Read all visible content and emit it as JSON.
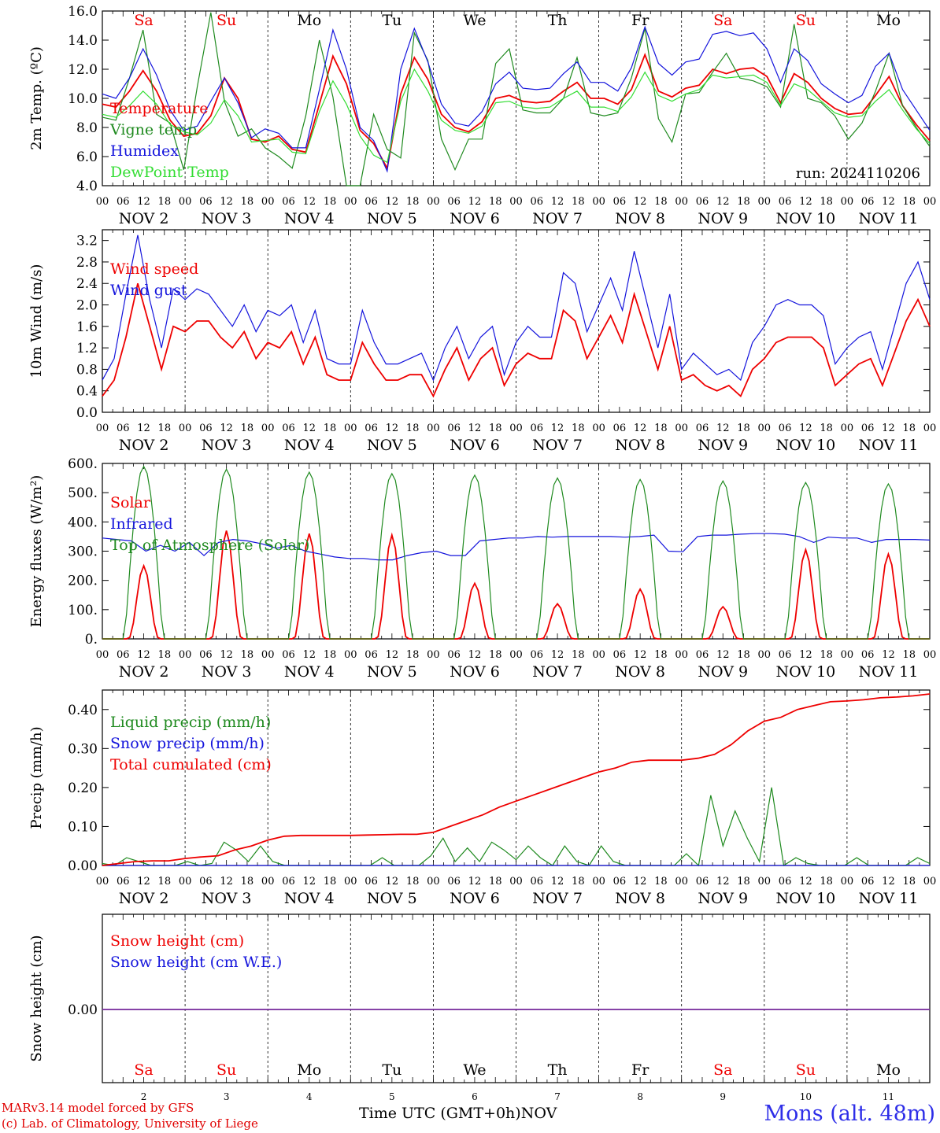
{
  "colors": {
    "red": "#ee0000",
    "green": "#1f8a1f",
    "blue": "#1414dc",
    "lightgreen": "#33dd33",
    "purple": "#7a2f9e",
    "weekend": "#ee0000",
    "weekday": "#000000",
    "station": "#2e2ee8"
  },
  "day_letters": [
    "Sa",
    "Su",
    "Mo",
    "Tu",
    "We",
    "Th",
    "Fr",
    "Sa",
    "Su",
    "Mo"
  ],
  "weekend_flags": [
    true,
    true,
    false,
    false,
    false,
    false,
    false,
    true,
    true,
    false
  ],
  "hour_labels": [
    "00",
    "06",
    "12",
    "18"
  ],
  "date_labels": [
    "NOV 2",
    "NOV 3",
    "NOV 4",
    "NOV 5",
    "NOV 6",
    "NOV 7",
    "NOV 8",
    "NOV 9",
    "NOV 10",
    "NOV 11"
  ],
  "bottom_day_numbers": [
    "2",
    "3",
    "4",
    "5",
    "6",
    "7",
    "8",
    "9",
    "10",
    "11"
  ],
  "footer": {
    "model_line": "MARv3.14 model forced by GFS",
    "lab_line": "(c) Lab. of Climatology, University of Liege",
    "time_axis": "Time UTC (GMT+0h)",
    "month": "NOV",
    "station": "Mons (alt. 48m)"
  },
  "chart_data": [
    {
      "type": "line",
      "ylabel": "2m Temp. (ºC)",
      "ylim": [
        4.0,
        16.0
      ],
      "yticks": [
        "4.0",
        "6.0",
        "8.0",
        "10.0",
        "12.0",
        "14.0",
        "16.0"
      ],
      "annotation": "run: 2024110206",
      "grid": "daily dashed verticals",
      "series": [
        {
          "name": "Temperature",
          "color": "red",
          "values": [
            9.6,
            9.4,
            10.5,
            11.9,
            10.5,
            8.5,
            7.4,
            7.6,
            8.8,
            11.4,
            10.0,
            7.2,
            7.0,
            7.4,
            6.5,
            6.3,
            9.6,
            12.9,
            11.0,
            7.8,
            6.9,
            5.2,
            10.3,
            12.8,
            11.3,
            8.9,
            8.0,
            7.7,
            8.4,
            10.0,
            10.2,
            9.8,
            9.7,
            9.8,
            10.5,
            11.1,
            10.0,
            10.0,
            9.6,
            10.6,
            13.0,
            10.5,
            10.1,
            10.7,
            10.9,
            12.0,
            11.7,
            12.0,
            12.1,
            11.5,
            9.7,
            11.7,
            11.1,
            10.0,
            9.3,
            8.9,
            9.0,
            10.2,
            11.5,
            9.5,
            8.2,
            7.1
          ]
        },
        {
          "name": "Vigne temp",
          "color": "green",
          "values": [
            8.7,
            8.5,
            11.4,
            14.7,
            8.9,
            8.3,
            5.1,
            10.8,
            15.9,
            9.8,
            7.4,
            7.9,
            6.6,
            6.0,
            5.2,
            8.8,
            14.0,
            10.1,
            4.0,
            4.0,
            8.9,
            6.5,
            5.9,
            14.5,
            12.6,
            7.2,
            5.1,
            7.2,
            7.2,
            12.4,
            13.4,
            9.2,
            9.0,
            9.0,
            10.0,
            12.8,
            9.0,
            8.8,
            9.0,
            11.4,
            14.8,
            8.6,
            7.0,
            10.3,
            10.4,
            11.8,
            13.1,
            11.4,
            11.2,
            10.8,
            9.4,
            15.1,
            10.0,
            9.7,
            8.8,
            7.2,
            8.3,
            10.5,
            13.1,
            9.5,
            8.0,
            6.7
          ]
        },
        {
          "name": "Humidex",
          "color": "blue",
          "values": [
            10.3,
            10.0,
            11.4,
            13.4,
            11.6,
            9.2,
            7.8,
            8.1,
            9.8,
            11.4,
            9.7,
            7.3,
            7.9,
            7.6,
            6.6,
            6.6,
            10.6,
            14.7,
            12.0,
            8.0,
            7.1,
            5.0,
            12.0,
            14.8,
            12.5,
            9.6,
            8.3,
            8.1,
            9.1,
            11.0,
            11.8,
            10.7,
            10.6,
            10.7,
            11.7,
            12.5,
            11.1,
            11.1,
            10.5,
            12.1,
            14.9,
            12.4,
            11.6,
            12.5,
            12.7,
            14.4,
            14.6,
            14.3,
            14.5,
            13.4,
            11.1,
            13.4,
            12.6,
            11.0,
            10.3,
            9.7,
            10.2,
            12.2,
            13.1,
            10.6,
            9.2,
            7.8
          ]
        },
        {
          "name": "DewPoint Temp",
          "color": "lightgreen",
          "values": [
            8.9,
            8.7,
            9.5,
            10.5,
            9.6,
            8.2,
            7.7,
            7.5,
            8.3,
            9.9,
            8.8,
            7.0,
            7.1,
            7.2,
            6.3,
            6.2,
            9.1,
            11.2,
            9.6,
            7.4,
            6.1,
            5.6,
            9.8,
            12.0,
            10.5,
            8.5,
            7.8,
            7.6,
            8.1,
            9.7,
            9.8,
            9.4,
            9.3,
            9.4,
            10.0,
            10.5,
            9.4,
            9.4,
            9.1,
            10.1,
            11.8,
            10.2,
            9.8,
            10.3,
            10.6,
            11.6,
            11.4,
            11.5,
            11.6,
            11.1,
            9.5,
            11.0,
            10.6,
            9.8,
            9.0,
            8.7,
            8.8,
            9.8,
            10.6,
            9.2,
            7.9,
            6.9
          ]
        }
      ]
    },
    {
      "type": "line",
      "ylabel": "10m Wind (m/s)",
      "ylim": [
        0.0,
        3.4
      ],
      "yticks": [
        "0.0",
        "0.4",
        "0.8",
        "1.2",
        "1.6",
        "2.0",
        "2.4",
        "2.8",
        "3.2"
      ],
      "series": [
        {
          "name": "Wind speed",
          "color": "red",
          "values": [
            0.3,
            0.6,
            1.4,
            2.4,
            1.6,
            0.8,
            1.6,
            1.5,
            1.7,
            1.7,
            1.4,
            1.2,
            1.5,
            1.0,
            1.3,
            1.2,
            1.5,
            0.9,
            1.4,
            0.7,
            0.6,
            0.6,
            1.3,
            0.9,
            0.6,
            0.6,
            0.7,
            0.7,
            0.3,
            0.8,
            1.2,
            0.6,
            1.0,
            1.2,
            0.5,
            0.9,
            1.1,
            1.0,
            1.0,
            1.9,
            1.7,
            1.0,
            1.4,
            1.8,
            1.3,
            2.2,
            1.5,
            0.8,
            1.6,
            0.6,
            0.7,
            0.5,
            0.4,
            0.5,
            0.3,
            0.8,
            1.0,
            1.3,
            1.4,
            1.4,
            1.4,
            1.2,
            0.5,
            0.7,
            0.9,
            1.0,
            0.5,
            1.1,
            1.7,
            2.1,
            1.6
          ]
        },
        {
          "name": "Wind gust",
          "color": "blue",
          "values": [
            0.6,
            1.0,
            2.2,
            3.3,
            2.1,
            1.2,
            2.3,
            2.1,
            2.3,
            2.2,
            1.9,
            1.6,
            2.0,
            1.5,
            1.9,
            1.8,
            2.0,
            1.3,
            1.9,
            1.0,
            0.9,
            0.9,
            1.9,
            1.3,
            0.9,
            0.9,
            1.0,
            1.1,
            0.6,
            1.2,
            1.6,
            1.0,
            1.4,
            1.6,
            0.7,
            1.3,
            1.6,
            1.4,
            1.4,
            2.6,
            2.4,
            1.5,
            2.0,
            2.5,
            1.9,
            3.0,
            2.1,
            1.2,
            2.2,
            0.8,
            1.1,
            0.9,
            0.7,
            0.8,
            0.6,
            1.3,
            1.6,
            2.0,
            2.1,
            2.0,
            2.0,
            1.8,
            0.9,
            1.2,
            1.4,
            1.5,
            0.8,
            1.6,
            2.4,
            2.8,
            2.1
          ]
        }
      ]
    },
    {
      "type": "line",
      "ylabel": "Energy fluxes (W/m²)",
      "ylim": [
        0,
        600
      ],
      "yticks": [
        "0.",
        "100.",
        "200.",
        "300.",
        "400.",
        "500.",
        "600."
      ],
      "series": [
        {
          "name": "Solar",
          "color": "red",
          "peaks": [
            250,
            370,
            360,
            355,
            190,
            120,
            170,
            110,
            305,
            290
          ]
        },
        {
          "name": "Infrared",
          "color": "blue",
          "values": [
            345,
            340,
            335,
            300,
            320,
            300,
            330,
            285,
            330,
            340,
            335,
            325,
            310,
            320,
            300,
            290,
            280,
            275,
            275,
            270,
            270,
            285,
            295,
            300,
            285,
            285,
            335,
            340,
            345,
            345,
            350,
            348,
            350,
            350,
            350,
            350,
            348,
            350,
            355,
            300,
            298,
            350,
            355,
            355,
            358,
            360,
            360,
            358,
            350,
            330,
            348,
            345,
            345,
            330,
            340,
            340,
            340,
            338
          ]
        },
        {
          "name": "Top of Atmosphere (Solar)",
          "color": "green",
          "peaks": [
            590,
            580,
            570,
            565,
            560,
            550,
            545,
            540,
            535,
            530
          ]
        }
      ]
    },
    {
      "type": "line",
      "ylabel": "Precip (mm/h)",
      "ylim": [
        0.0,
        0.45
      ],
      "yticks": [
        "0.00",
        "0.10",
        "0.20",
        "0.30",
        "0.40"
      ],
      "series": [
        {
          "name": "Liquid precip (mm/h)",
          "color": "green",
          "values": [
            0.005,
            0.0,
            0.02,
            0.01,
            0.0,
            0.0,
            0.0,
            0.01,
            0.0,
            0.005,
            0.06,
            0.04,
            0.01,
            0.05,
            0.01,
            0.0,
            0.0,
            0.0,
            0.0,
            0.0,
            0.0,
            0.0,
            0.0,
            0.02,
            0.0,
            0.0,
            0.0,
            0.025,
            0.07,
            0.01,
            0.045,
            0.01,
            0.06,
            0.04,
            0.015,
            0.05,
            0.02,
            0.0,
            0.05,
            0.01,
            0.0,
            0.05,
            0.01,
            0.0,
            0.0,
            0.0,
            0.0,
            0.0,
            0.03,
            0.0,
            0.18,
            0.05,
            0.14,
            0.07,
            0.01,
            0.2,
            0.0,
            0.02,
            0.005,
            0.0,
            0.0,
            0.0,
            0.02,
            0.0,
            0.0,
            0.0,
            0.0,
            0.02,
            0.005
          ]
        },
        {
          "name": "Snow precip (mm/h)",
          "color": "blue",
          "values": [
            0.0
          ]
        },
        {
          "name": "Total cumulated (cm)",
          "color": "red",
          "values": [
            0.0,
            0.005,
            0.01,
            0.012,
            0.012,
            0.018,
            0.022,
            0.025,
            0.04,
            0.05,
            0.065,
            0.075,
            0.077,
            0.077,
            0.077,
            0.077,
            0.078,
            0.079,
            0.08,
            0.08,
            0.085,
            0.1,
            0.115,
            0.13,
            0.15,
            0.165,
            0.18,
            0.195,
            0.21,
            0.225,
            0.24,
            0.25,
            0.265,
            0.27,
            0.27,
            0.27,
            0.275,
            0.285,
            0.31,
            0.345,
            0.37,
            0.38,
            0.4,
            0.41,
            0.42,
            0.422,
            0.425,
            0.43,
            0.432,
            0.435,
            0.44
          ]
        }
      ]
    },
    {
      "type": "line",
      "ylabel": "Snow height (cm)",
      "yticks": [
        "0.00"
      ],
      "series": [
        {
          "name": "Snow height (cm)",
          "color": "red",
          "values": [
            0.0
          ]
        },
        {
          "name": "Snow height (cm W.E.)",
          "color": "blue",
          "values": [
            0.0
          ]
        }
      ]
    }
  ]
}
